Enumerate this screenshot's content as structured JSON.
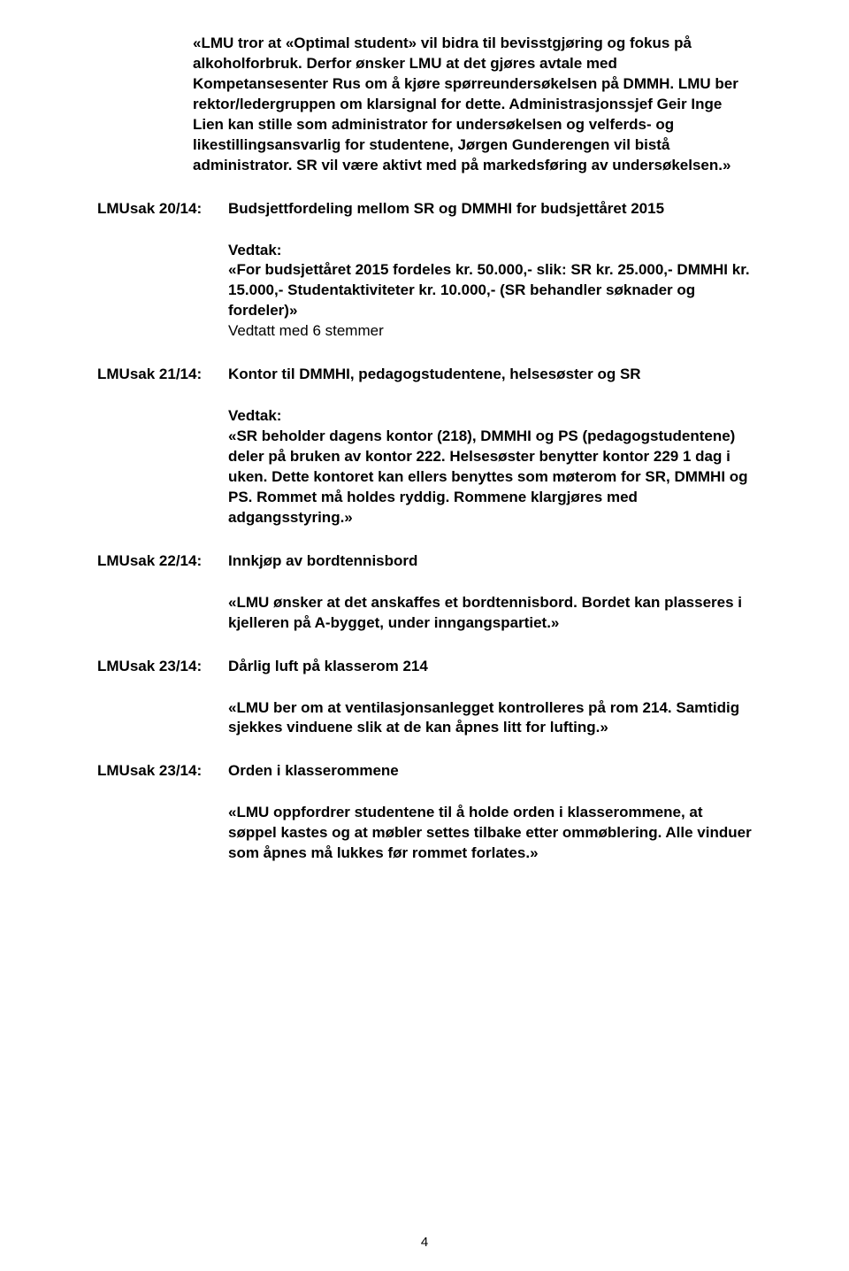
{
  "top_paragraph": "«LMU tror at «Optimal student» vil bidra til bevisstgjøring og fokus på alkoholforbruk. Derfor ønsker LMU at det gjøres avtale med Kompetansesenter Rus om å kjøre spørreundersøkelsen på DMMH. LMU ber rektor/ledergruppen om klarsignal for dette. Administrasjonssjef Geir Inge Lien kan stille som administrator for undersøkelsen og velferds- og likestillingsansvarlig for studentene, Jørgen Gunderengen vil bistå administrator. SR vil være aktivt med på markedsføring av undersøkelsen.»",
  "s20": {
    "label": "LMUsak 20/14:",
    "title": "Budsjettfordeling mellom SR og DMMHI for budsjettåret 2015",
    "vedtak_label": "Vedtak:",
    "body": "«For budsjettåret 2015 fordeles kr. 50.000,- slik: SR kr. 25.000,- DMMHI kr. 15.000,- Studentaktiviteter kr. 10.000,- (SR behandler søknader og fordeler)»",
    "note": "Vedtatt med 6 stemmer"
  },
  "s21": {
    "label": "LMUsak 21/14:",
    "title": "Kontor til DMMHI, pedagogstudentene, helsesøster og SR",
    "vedtak_label": "Vedtak:",
    "body": "«SR beholder dagens kontor (218), DMMHI og PS (pedagogstudentene) deler på bruken av kontor 222. Helsesøster benytter kontor 229 1 dag i uken. Dette kontoret kan ellers benyttes som møterom for SR, DMMHI og PS. Rommet må holdes ryddig. Rommene klargjøres med adgangsstyring.»"
  },
  "s22": {
    "label": "LMUsak 22/14:",
    "title": "Innkjøp av bordtennisbord",
    "body": "«LMU ønsker at det anskaffes et bordtennisbord. Bordet kan plasseres i kjelleren på A-bygget, under inngangspartiet.»"
  },
  "s23a": {
    "label": "LMUsak 23/14:",
    "title": "Dårlig luft på klasserom 214",
    "body": "«LMU ber om at ventilasjonsanlegget kontrolleres på rom 214. Samtidig sjekkes vinduene slik at de kan åpnes litt for lufting.»"
  },
  "s23b": {
    "label": "LMUsak 23/14:",
    "title": "Orden i klasserommene",
    "body": "«LMU oppfordrer studentene til å holde orden i klasserommene, at søppel kastes og at møbler settes tilbake etter ommøblering. Alle vinduer som åpnes må lukkes før rommet forlates.»"
  },
  "page_number": "4"
}
